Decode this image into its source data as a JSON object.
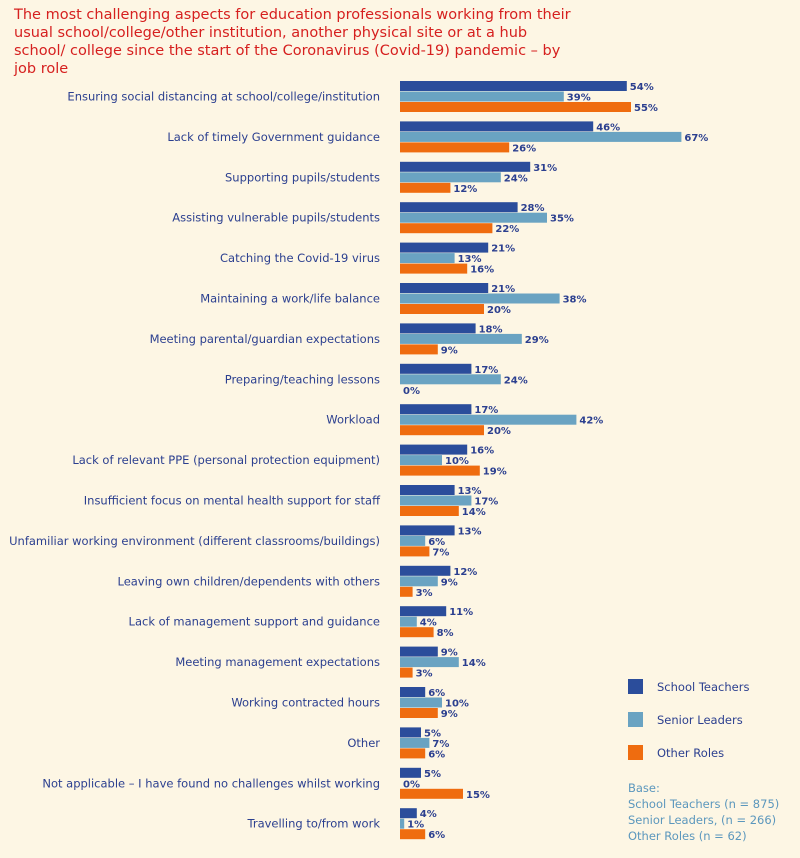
{
  "chart_data": {
    "type": "bar",
    "orientation": "horizontal",
    "title": "The most challenging aspects for education professionals working from their usual school/college/other institution, another physical site or at a hub school/ college since the start of the Coronavirus (Covid-19) pandemic – by job role",
    "categories": [
      "Ensuring social distancing at school/college/institution",
      "Lack of timely Government guidance",
      "Supporting pupils/students",
      "Assisting vulnerable pupils/students",
      "Catching the Covid-19 virus",
      "Maintaining a work/life balance",
      "Meeting parental/guardian expectations",
      "Preparing/teaching lessons",
      "Workload",
      "Lack of relevant PPE (personal protection equipment)",
      "Insufficient focus on mental health support for staff",
      "Unfamiliar working environment (different classrooms/buildings)",
      "Leaving own children/dependents with others",
      "Lack of management support and guidance",
      "Meeting management expectations",
      "Working contracted hours",
      "Other",
      "Not applicable – I have found no challenges whilst working",
      "Travelling to/from work"
    ],
    "series": [
      {
        "name": "School Teachers",
        "color": "#2b4d9b",
        "values": [
          54,
          46,
          31,
          28,
          21,
          21,
          18,
          17,
          17,
          16,
          13,
          13,
          12,
          11,
          9,
          6,
          5,
          5,
          4
        ]
      },
      {
        "name": "Senior Leaders",
        "color": "#6aa3c2",
        "values": [
          39,
          67,
          24,
          35,
          13,
          38,
          29,
          24,
          42,
          10,
          17,
          6,
          9,
          4,
          14,
          10,
          7,
          0,
          1
        ]
      },
      {
        "name": "Other Roles",
        "color": "#ef6c0f",
        "values": [
          55,
          26,
          12,
          22,
          16,
          20,
          9,
          0,
          20,
          19,
          14,
          7,
          3,
          8,
          3,
          9,
          6,
          15,
          6
        ]
      }
    ],
    "value_suffix": "%",
    "xlim": [
      0,
      100
    ],
    "grid": false,
    "legend_position": "bottom-right"
  },
  "base": {
    "heading": "Base:",
    "lines": [
      "School Teachers (n = 875)",
      "Senior Leaders, (n = 266)",
      "Other Roles (n = 62)"
    ]
  },
  "colors": {
    "background": "#fdf6e4",
    "title": "#d6201f",
    "label": "#2b3f8f"
  }
}
